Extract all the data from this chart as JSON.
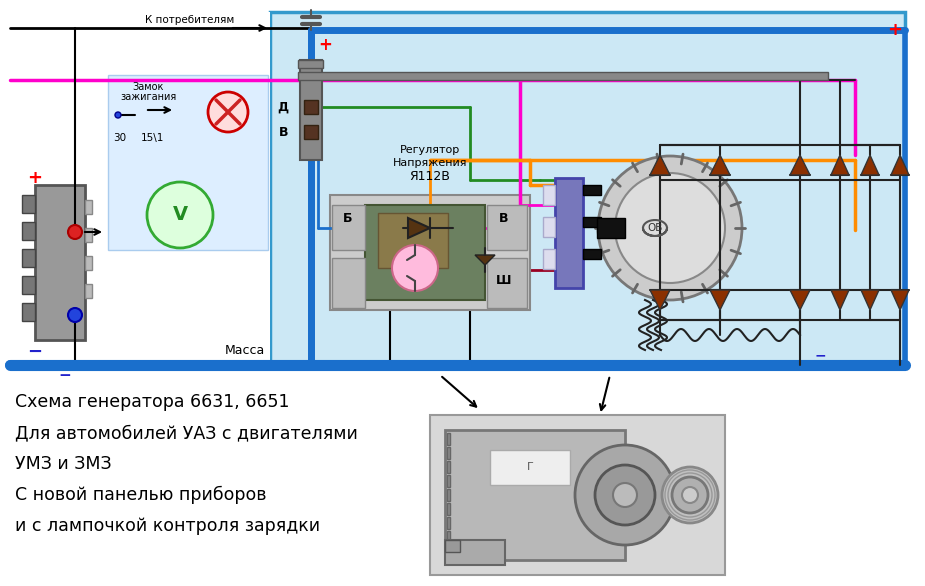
{
  "bg_color": "#ffffff",
  "diagram_bg": "#cce8f5",
  "title_lines": [
    "Схема генератора 6631, 6651",
    "Для автомобилей УАЗ с двигателями",
    "УМЗ и ЗМЗ",
    "С новой панелью приборов",
    "и с лампочкой контроля зарядки"
  ],
  "wire_blue": "#1a6fcc",
  "wire_green": "#228B22",
  "wire_pink": "#ff00cc",
  "wire_orange": "#ff8c00",
  "wire_dark_red": "#990022",
  "wire_black": "#000000",
  "wire_gray": "#999999",
  "plus_color": "#ff0000",
  "minus_color": "#2222cc",
  "label_color": "#000000",
  "relay_bg": "#6b8060",
  "connector_color": "#8888bb"
}
